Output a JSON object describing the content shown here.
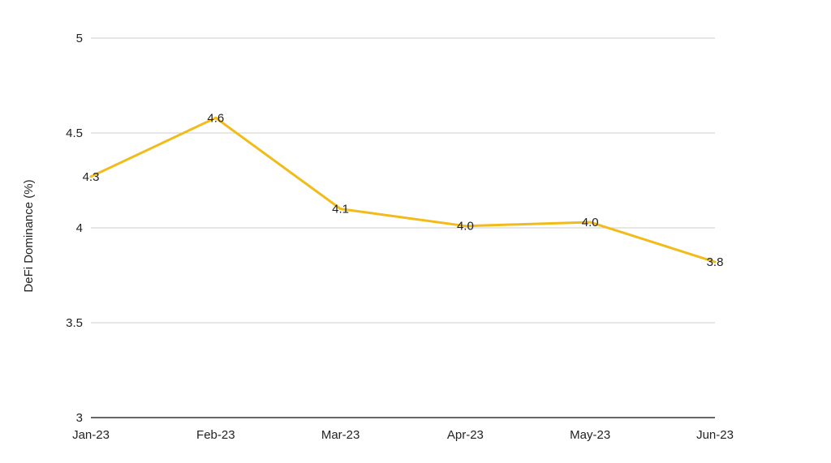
{
  "chart_data": {
    "type": "line",
    "categories": [
      "Jan-23",
      "Feb-23",
      "Mar-23",
      "Apr-23",
      "May-23",
      "Jun-23"
    ],
    "series": [
      {
        "values": [
          4.27,
          4.58,
          4.1,
          4.01,
          4.03,
          3.82
        ],
        "labels": [
          "4.3",
          "4.6",
          "4.1",
          "4.0",
          "4.0",
          "3.8"
        ],
        "color": "#f1bc19"
      }
    ],
    "xlabel": "",
    "ylabel": "DeFi Dominance (%)",
    "ylim": [
      3,
      5
    ],
    "yticks": [
      "3",
      "3.5",
      "4",
      "4.5",
      "5"
    ],
    "grid": true,
    "legend": "none"
  }
}
